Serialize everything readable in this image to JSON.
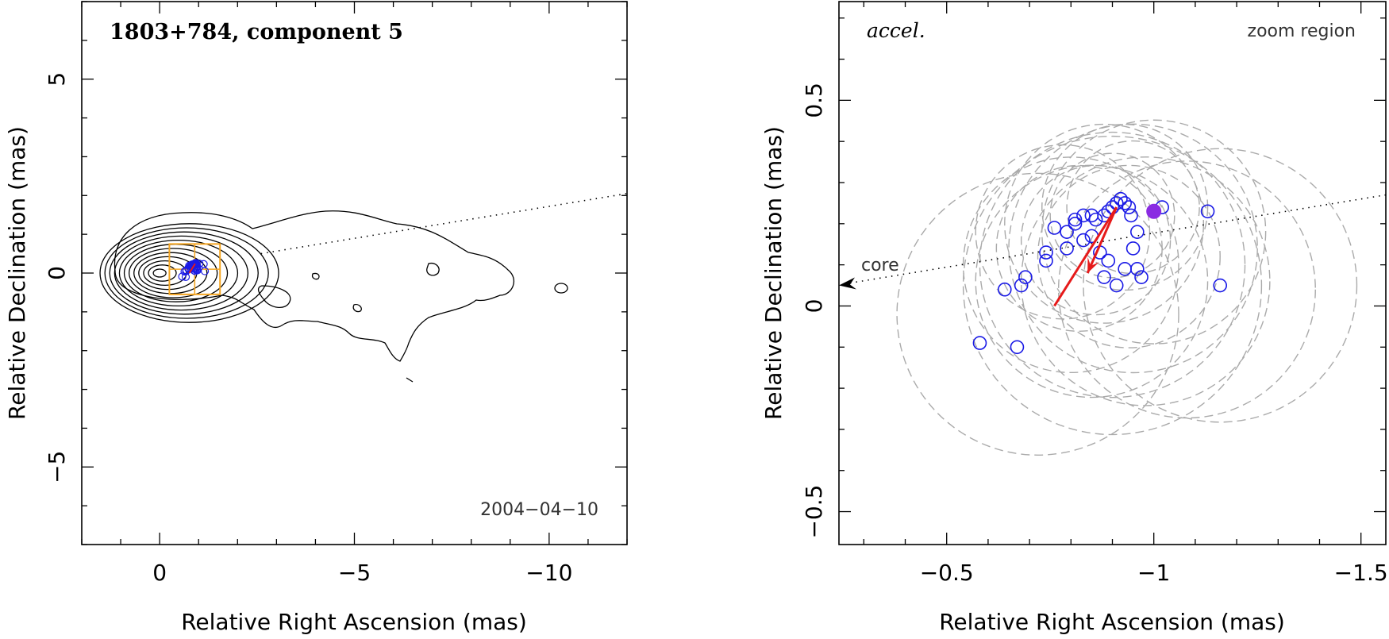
{
  "left_panel": {
    "title": "1803+784, component 5",
    "date": "2004−04−10",
    "xlabel": "Relative Right Ascension (mas)",
    "ylabel": "Relative Declination (mas)",
    "x_tick_labels": [
      "0",
      "−5",
      "−10"
    ],
    "y_tick_labels": [
      "5",
      "0",
      "−5"
    ]
  },
  "right_panel": {
    "label_left": "accel.",
    "label_right": "zoom region",
    "core_label": "core",
    "xlabel": "Relative Right Ascension (mas)",
    "ylabel": "Relative Declination (mas)",
    "x_tick_labels": [
      "−0.5",
      "−1",
      "−1.5"
    ],
    "y_tick_labels": [
      "0.5",
      "0",
      "−0.5"
    ]
  },
  "colors": {
    "positions": "#1a1ae6",
    "vector": "#e61a1a",
    "reference": "#8a2be2",
    "zoom_box": "#f5a623",
    "uncertainty": "#aaaaaa"
  },
  "chart_data": [
    {
      "type": "contour",
      "xlim": [
        2,
        -12
      ],
      "ylim": [
        -7,
        7
      ],
      "x_ticks": [
        0,
        -5,
        -10
      ],
      "y_ticks": [
        5,
        0,
        -5
      ],
      "zoom_region": {
        "x": [
          -0.25,
          -1.55
        ],
        "y": [
          -0.55,
          0.75
        ]
      }
    },
    {
      "type": "scatter",
      "xlim": [
        -0.24,
        -1.56
      ],
      "ylim": [
        -0.58,
        0.74
      ],
      "x_ticks": [
        -0.5,
        -1,
        -1.5
      ],
      "y_ticks": [
        0.5,
        0,
        -0.5
      ],
      "series": [
        {
          "x": [
            -0.76,
            -0.79,
            -0.81,
            -0.83,
            -0.85,
            -0.86,
            -0.88,
            -0.89,
            -0.9,
            -0.91,
            -0.92,
            -0.93,
            -0.94,
            -0.945,
            -0.95,
            -0.96,
            -0.97,
            -0.93,
            -0.91,
            -0.89,
            -0.87,
            -0.85,
            -0.83,
            -0.81,
            -0.79,
            -0.74,
            -0.69,
            -0.68,
            -0.67,
            -0.64,
            -0.58,
            -0.74,
            -0.88,
            -0.96,
            -1.02,
            -1.13,
            -1.16
          ],
          "y": [
            0.19,
            0.18,
            0.21,
            0.22,
            0.22,
            0.21,
            0.22,
            0.23,
            0.24,
            0.25,
            0.26,
            0.25,
            0.24,
            0.22,
            0.14,
            0.09,
            0.07,
            0.09,
            0.05,
            0.11,
            0.13,
            0.17,
            0.16,
            0.2,
            0.14,
            0.13,
            0.07,
            0.05,
            -0.1,
            0.04,
            -0.09,
            0.11,
            0.07,
            0.18,
            0.24,
            0.23,
            0.05
          ]
        },
        {
          "x": [
            -1.0
          ],
          "y": [
            0.23
          ]
        }
      ],
      "uncertainty_circles": [
        {
          "x": -0.95,
          "y": 0.14,
          "r": 0.3
        },
        {
          "x": -0.9,
          "y": 0.1,
          "r": 0.32
        },
        {
          "x": -0.85,
          "y": 0.06,
          "r": 0.28
        },
        {
          "x": -0.93,
          "y": 0.24,
          "r": 0.2
        },
        {
          "x": -0.88,
          "y": 0.2,
          "r": 0.24
        },
        {
          "x": -0.8,
          "y": 0.1,
          "r": 0.26
        },
        {
          "x": -1.0,
          "y": 0.18,
          "r": 0.27
        },
        {
          "x": -0.9,
          "y": 0.05,
          "r": 0.36
        },
        {
          "x": -0.94,
          "y": 0.12,
          "r": 0.22
        },
        {
          "x": -0.86,
          "y": 0.16,
          "r": 0.18
        },
        {
          "x": -0.78,
          "y": 0.18,
          "r": 0.21
        },
        {
          "x": -0.98,
          "y": 0.06,
          "r": 0.3
        },
        {
          "x": -1.08,
          "y": 0.04,
          "r": 0.31
        },
        {
          "x": -1.16,
          "y": 0.05,
          "r": 0.33
        },
        {
          "x": -0.72,
          "y": -0.02,
          "r": 0.34
        },
        {
          "x": -0.95,
          "y": 0.24,
          "r": 0.16
        },
        {
          "x": -0.9,
          "y": 0.22,
          "r": 0.15
        },
        {
          "x": -0.82,
          "y": 0.14,
          "r": 0.2
        }
      ],
      "vector": {
        "from": [
          -0.76,
          0.0
        ],
        "to": [
          -0.91,
          0.24
        ],
        "mid_arrow": [
          -0.84,
          0.08
        ]
      },
      "core_direction": {
        "from": [
          -1.56,
          0.27
        ],
        "to": [
          -0.24,
          0.05
        ]
      }
    }
  ]
}
